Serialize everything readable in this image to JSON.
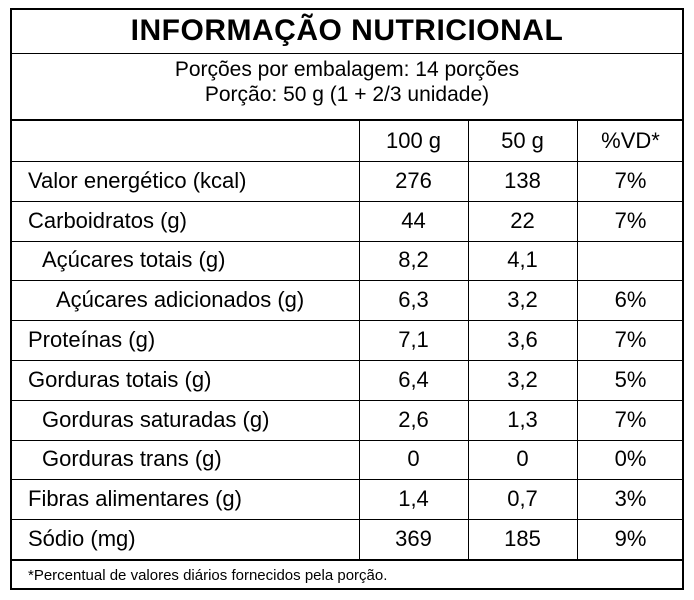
{
  "title": "INFORMAÇÃO NUTRICIONAL",
  "servings_per_package": "Porções por embalagem: 14 porções",
  "serving_size": "Porção: 50 g (1 + 2/3 unidade)",
  "headers": [
    "",
    "100 g",
    "50 g",
    "%VD*"
  ],
  "rows": [
    {
      "name": "Valor energético (kcal)",
      "indent": 0,
      "per100": "276",
      "per50": "138",
      "dv": "7%"
    },
    {
      "name": "Carboidratos (g)",
      "indent": 0,
      "per100": "44",
      "per50": "22",
      "dv": "7%"
    },
    {
      "name": "Açúcares totais (g)",
      "indent": 1,
      "per100": "8,2",
      "per50": "4,1",
      "dv": ""
    },
    {
      "name": "Açúcares adicionados (g)",
      "indent": 2,
      "per100": "6,3",
      "per50": "3,2",
      "dv": "6%"
    },
    {
      "name": "Proteínas (g)",
      "indent": 0,
      "per100": "7,1",
      "per50": "3,6",
      "dv": "7%"
    },
    {
      "name": "Gorduras totais (g)",
      "indent": 0,
      "per100": "6,4",
      "per50": "3,2",
      "dv": "5%"
    },
    {
      "name": "Gorduras saturadas (g)",
      "indent": 1,
      "per100": "2,6",
      "per50": "1,3",
      "dv": "7%"
    },
    {
      "name": "Gorduras trans (g)",
      "indent": 1,
      "per100": "0",
      "per50": "0",
      "dv": "0%"
    },
    {
      "name": "Fibras alimentares (g)",
      "indent": 0,
      "per100": "1,4",
      "per50": "0,7",
      "dv": "3%"
    },
    {
      "name": "Sódio (mg)",
      "indent": 0,
      "per100": "369",
      "per50": "185",
      "dv": "9%"
    }
  ],
  "footnote": "*Percentual de valores diários fornecidos pela porção."
}
